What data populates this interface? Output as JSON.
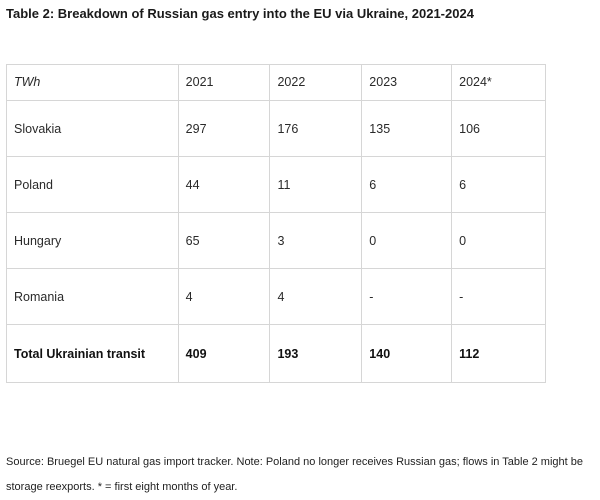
{
  "title": "Table 2: Breakdown of Russian gas entry into the EU via Ukraine, 2021-2024",
  "table": {
    "headers": [
      "TWh",
      "2021",
      "2022",
      "2023",
      "2024*"
    ],
    "rows": [
      [
        "Slovakia",
        "297",
        "176",
        "135",
        "106"
      ],
      [
        "Poland",
        "44",
        "11",
        "6",
        "6"
      ],
      [
        "Hungary",
        "65",
        "3",
        "0",
        "0"
      ],
      [
        "Romania",
        "4",
        "4",
        "-",
        "-"
      ]
    ],
    "total": [
      "Total Ukrainian transit",
      "409",
      "193",
      "140",
      "112"
    ]
  },
  "source": "Source: Bruegel EU natural gas import tracker. Note: Poland no longer receives Russian gas; flows in Table 2 might be storage reexports. * = first eight months of year."
}
